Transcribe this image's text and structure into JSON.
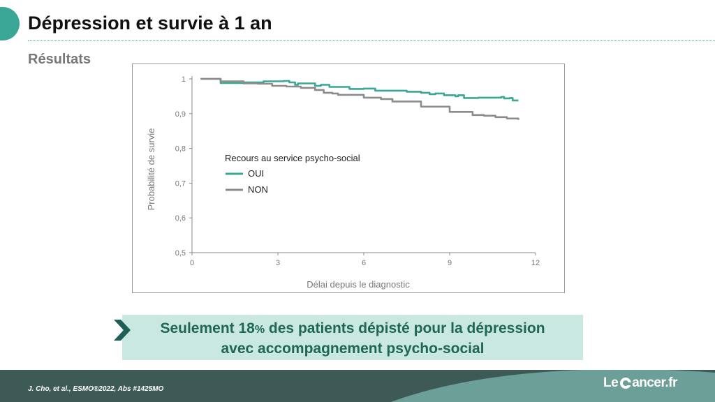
{
  "slide": {
    "title": "Dépression et survie à 1 an",
    "subtitle": "Résultats",
    "callout_line1_a": "Seulement 18",
    "callout_line1_pct": "%",
    "callout_line1_b": " des patients dépisté pour la dépression",
    "callout_line2": "avec accompagnement psycho-social",
    "citation": "J. Cho, et al., ESMO®2022, Abs #1425MO",
    "brand_a": "Le ",
    "brand_b": "ancer.fr",
    "colors": {
      "accent": "#3aa695",
      "oui": "#3aa695",
      "non": "#8c8c8c",
      "callout_bg": "#c8e8e1",
      "footer_dark": "#3d5a56"
    }
  },
  "chart_data": {
    "type": "line",
    "title": "",
    "xlabel": "Délai depuis le diagnostic",
    "ylabel": "Probabilité de survie",
    "xlim": [
      0,
      12
    ],
    "ylim": [
      0.5,
      1
    ],
    "xticks": [
      "0",
      "3",
      "6",
      "9",
      "12"
    ],
    "yticks": [
      "0,5",
      "0,6",
      "0,7",
      "0,8",
      "0,9",
      "1"
    ],
    "grid": false,
    "legend_title": "Recours au service psycho-social",
    "legend_position": "center-left",
    "series": [
      {
        "name": "OUI",
        "color": "#3aa695",
        "points": [
          [
            0.3,
            1.0
          ],
          [
            0.9,
            1.0
          ],
          [
            1.0,
            0.988
          ],
          [
            1.8,
            0.99
          ],
          [
            2.5,
            0.993
          ],
          [
            3.2,
            0.994
          ],
          [
            3.4,
            0.99
          ],
          [
            3.6,
            0.983
          ],
          [
            3.7,
            0.987
          ],
          [
            4.3,
            0.98
          ],
          [
            4.5,
            0.983
          ],
          [
            4.8,
            0.977
          ],
          [
            5.4,
            0.977
          ],
          [
            5.5,
            0.971
          ],
          [
            6.0,
            0.972
          ],
          [
            6.4,
            0.966
          ],
          [
            7.0,
            0.966
          ],
          [
            7.5,
            0.963
          ],
          [
            8.0,
            0.96
          ],
          [
            8.3,
            0.956
          ],
          [
            8.5,
            0.958
          ],
          [
            8.8,
            0.953
          ],
          [
            9.2,
            0.95
          ],
          [
            9.3,
            0.953
          ],
          [
            9.5,
            0.945
          ],
          [
            10.0,
            0.946
          ],
          [
            10.8,
            0.948
          ],
          [
            10.9,
            0.944
          ],
          [
            11.1,
            0.945
          ],
          [
            11.2,
            0.938
          ],
          [
            11.4,
            0.938
          ]
        ]
      },
      {
        "name": "NON",
        "color": "#8c8c8c",
        "points": [
          [
            0.3,
            1.0
          ],
          [
            1.0,
            0.993
          ],
          [
            1.8,
            0.987
          ],
          [
            2.3,
            0.986
          ],
          [
            2.8,
            0.98
          ],
          [
            3.3,
            0.978
          ],
          [
            3.8,
            0.974
          ],
          [
            4.3,
            0.968
          ],
          [
            4.6,
            0.96
          ],
          [
            4.9,
            0.958
          ],
          [
            5.1,
            0.954
          ],
          [
            6.0,
            0.946
          ],
          [
            6.6,
            0.942
          ],
          [
            7.0,
            0.935
          ],
          [
            8.0,
            0.92
          ],
          [
            9.0,
            0.905
          ],
          [
            9.6,
            0.905
          ],
          [
            9.8,
            0.896
          ],
          [
            10.2,
            0.894
          ],
          [
            10.6,
            0.89
          ],
          [
            11.0,
            0.886
          ],
          [
            11.4,
            0.882
          ]
        ]
      }
    ]
  }
}
